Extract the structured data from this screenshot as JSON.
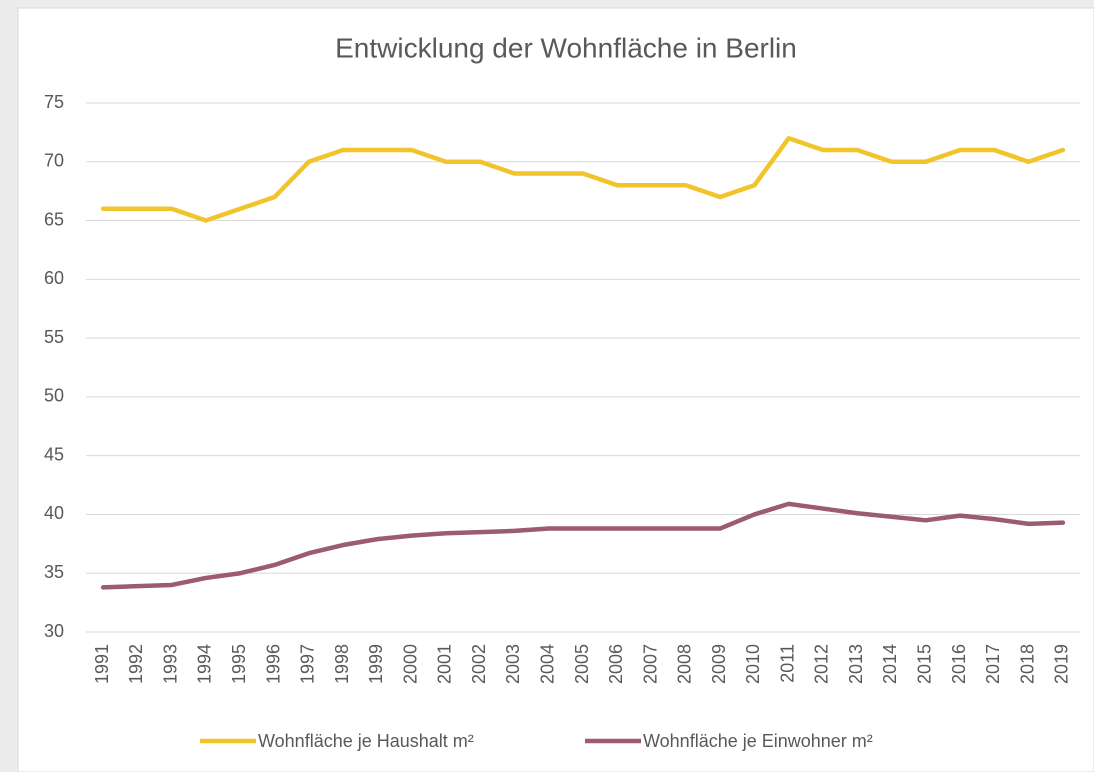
{
  "chart_data": {
    "type": "line",
    "title": "Entwicklung der Wohnfläche in Berlin",
    "categories": [
      "1991",
      "1992",
      "1993",
      "1994",
      "1995",
      "1996",
      "1997",
      "1998",
      "1999",
      "2000",
      "2001",
      "2002",
      "2003",
      "2004",
      "2005",
      "2006",
      "2007",
      "2008",
      "2009",
      "2010",
      "2011",
      "2012",
      "2013",
      "2014",
      "2015",
      "2016",
      "2017",
      "2018",
      "2019"
    ],
    "series": [
      {
        "name": "Wohnfläche je Haushalt m²",
        "color": "#f2c42b",
        "values": [
          66,
          66,
          66,
          65,
          66,
          67,
          70,
          71,
          71,
          71,
          70,
          70,
          69,
          69,
          69,
          68,
          68,
          68,
          67,
          68,
          72,
          71,
          71,
          70,
          70,
          71,
          71,
          70,
          71
        ]
      },
      {
        "name": "Wohnfläche je Einwohner m²",
        "color": "#9b5b73",
        "values": [
          33.8,
          33.9,
          34.0,
          34.6,
          35.0,
          35.7,
          36.7,
          37.4,
          37.9,
          38.2,
          38.4,
          38.5,
          38.6,
          38.8,
          38.8,
          38.8,
          38.8,
          38.8,
          38.8,
          40.0,
          40.9,
          40.5,
          40.1,
          39.8,
          39.5,
          39.9,
          39.6,
          39.2,
          39.3
        ]
      }
    ],
    "ylim": [
      30,
      75
    ],
    "yticks": [
      30,
      35,
      40,
      45,
      50,
      55,
      60,
      65,
      70,
      75
    ],
    "grid": true,
    "legend": "bottom"
  }
}
